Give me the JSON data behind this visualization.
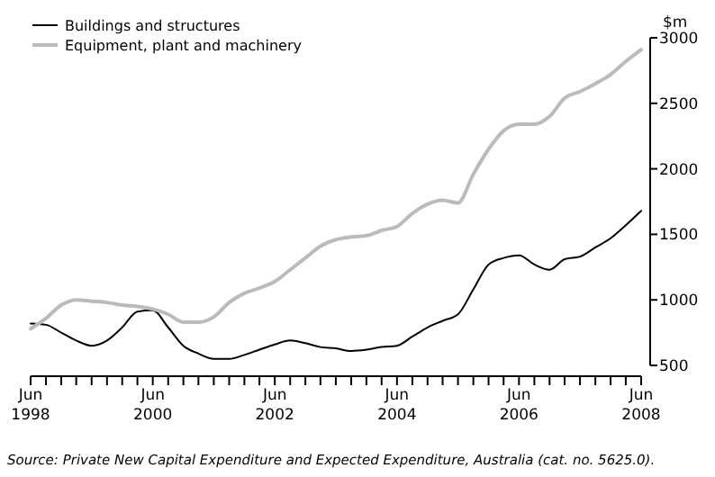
{
  "chart_data": {
    "type": "line",
    "ylabel": "$m",
    "legend": "top left",
    "marker": "none",
    "line_style": "solid",
    "grid": false,
    "x": [
      "1998-06",
      "1998-09",
      "1998-12",
      "1999-03",
      "1999-06",
      "1999-09",
      "1999-12",
      "2000-03",
      "2000-06",
      "2000-09",
      "2000-12",
      "2001-03",
      "2001-06",
      "2001-09",
      "2001-12",
      "2002-03",
      "2002-06",
      "2002-09",
      "2002-12",
      "2003-03",
      "2003-06",
      "2003-09",
      "2003-12",
      "2004-03",
      "2004-06",
      "2004-09",
      "2004-12",
      "2005-03",
      "2005-06",
      "2005-09",
      "2005-12",
      "2006-03",
      "2006-06",
      "2006-09",
      "2006-12",
      "2007-03",
      "2007-06",
      "2007-09",
      "2007-12",
      "2008-03",
      "2008-06"
    ],
    "series": [
      {
        "name": "Buildings and structures",
        "color": "#000000",
        "values": [
          820,
          810,
          750,
          690,
          650,
          690,
          790,
          910,
          920,
          790,
          650,
          590,
          550,
          550,
          580,
          620,
          660,
          690,
          670,
          640,
          630,
          610,
          620,
          640,
          650,
          720,
          790,
          840,
          890,
          1080,
          1270,
          1320,
          1340,
          1270,
          1230,
          1310,
          1330,
          1400,
          1470,
          1570,
          1680
        ]
      },
      {
        "name": "Equipment, plant and machinery",
        "color": "#bbbbbb",
        "values": [
          780,
          860,
          960,
          1000,
          990,
          980,
          960,
          950,
          930,
          890,
          830,
          830,
          870,
          980,
          1050,
          1090,
          1140,
          1230,
          1320,
          1410,
          1460,
          1480,
          1490,
          1530,
          1560,
          1660,
          1730,
          1760,
          1740,
          1960,
          2150,
          2290,
          2340,
          2340,
          2400,
          2540,
          2590,
          2650,
          2720,
          2820,
          2910
        ]
      }
    ],
    "xlim": [
      "1998-06",
      "2008-06"
    ],
    "xticks": [
      {
        "value": "1998-06",
        "label": "Jun 1998"
      },
      {
        "value": "1998-09",
        "label": null
      },
      {
        "value": "1998-12",
        "label": null
      },
      {
        "value": "1999-03",
        "label": null
      },
      {
        "value": "1999-06",
        "label": null
      },
      {
        "value": "1999-09",
        "label": null
      },
      {
        "value": "1999-12",
        "label": null
      },
      {
        "value": "2000-03",
        "label": null
      },
      {
        "value": "2000-06",
        "label": "Jun 2000"
      },
      {
        "value": "2000-09",
        "label": null
      },
      {
        "value": "2000-12",
        "label": null
      },
      {
        "value": "2001-03",
        "label": null
      },
      {
        "value": "2001-06",
        "label": null
      },
      {
        "value": "2001-09",
        "label": null
      },
      {
        "value": "2001-12",
        "label": null
      },
      {
        "value": "2002-03",
        "label": null
      },
      {
        "value": "2002-06",
        "label": "Jun 2002"
      },
      {
        "value": "2002-09",
        "label": null
      },
      {
        "value": "2002-12",
        "label": null
      },
      {
        "value": "2003-03",
        "label": null
      },
      {
        "value": "2003-06",
        "label": null
      },
      {
        "value": "2003-09",
        "label": null
      },
      {
        "value": "2003-12",
        "label": null
      },
      {
        "value": "2004-03",
        "label": null
      },
      {
        "value": "2004-06",
        "label": "Jun 2004"
      },
      {
        "value": "2004-09",
        "label": null
      },
      {
        "value": "2004-12",
        "label": null
      },
      {
        "value": "2005-03",
        "label": null
      },
      {
        "value": "2005-06",
        "label": null
      },
      {
        "value": "2005-09",
        "label": null
      },
      {
        "value": "2005-12",
        "label": null
      },
      {
        "value": "2006-03",
        "label": null
      },
      {
        "value": "2006-06",
        "label": "Jun 2006"
      },
      {
        "value": "2006-09",
        "label": null
      },
      {
        "value": "2006-12",
        "label": null
      },
      {
        "value": "2007-03",
        "label": null
      },
      {
        "value": "2007-06",
        "label": null
      },
      {
        "value": "2007-09",
        "label": null
      },
      {
        "value": "2007-12",
        "label": null
      },
      {
        "value": "2008-03",
        "label": null
      },
      {
        "value": "2008-06",
        "label": "Jun 2008"
      }
    ],
    "ylim": [
      500,
      3000
    ],
    "yticks": [
      500,
      1000,
      1500,
      2000,
      2500,
      3000
    ],
    "annotations": [
      "Source: Private New Capital Expenditure and Expected Expenditure, Australia (cat. no. 5625.0)."
    ]
  }
}
